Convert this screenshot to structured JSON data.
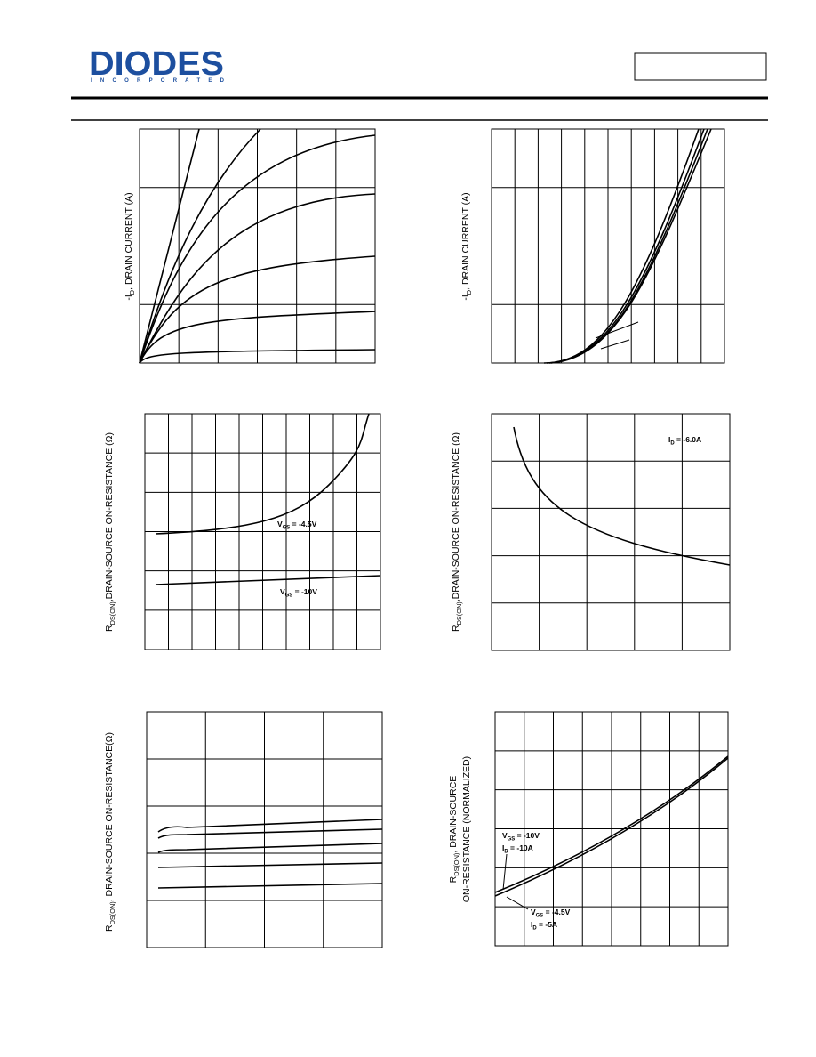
{
  "header": {
    "logo": "DIODES",
    "logo_subtitle": "I N C O R P O R A T E D"
  },
  "charts": [
    {
      "y_label": [
        [
          "-I",
          "D",
          ", DRAIN CURRENT (A)"
        ]
      ]
    },
    {
      "y_label": [
        [
          "-I",
          "D",
          ", DRAIN CURRENT (A)"
        ]
      ]
    },
    {
      "y_label": [
        [
          "R",
          "DS(ON)",
          ",DRAIN-SOURCE ON-RESISTANCE (Ω)"
        ]
      ],
      "annotations": [
        [
          "V",
          "GS",
          " = -4.5V"
        ],
        [
          "V",
          "GS",
          " = -10V"
        ]
      ]
    },
    {
      "y_label": [
        [
          "R",
          "DS(ON)",
          ",DRAIN-SOURCE ON-RESISTANCE (Ω)"
        ]
      ],
      "annotations": [
        [
          "I",
          "D",
          " = -6.0A"
        ]
      ]
    },
    {
      "y_label": [
        [
          "R",
          "DS(ON)",
          ", DRAIN-SOURCE ON-RESISTANCE(Ω)"
        ]
      ]
    },
    {
      "y_label": [
        [
          "R",
          "DS(ON)",
          ", DRAIN-SOURCE"
        ],
        [
          "ON-RESISTANCE (NORMALIZED)"
        ]
      ],
      "annotations": [
        [
          "V",
          "GS",
          " = -10V"
        ],
        [
          "I",
          "D",
          " = -10A"
        ],
        [
          "V",
          "GS",
          " = -4.5V"
        ],
        [
          "I",
          "D",
          " = -5A"
        ]
      ]
    }
  ]
}
